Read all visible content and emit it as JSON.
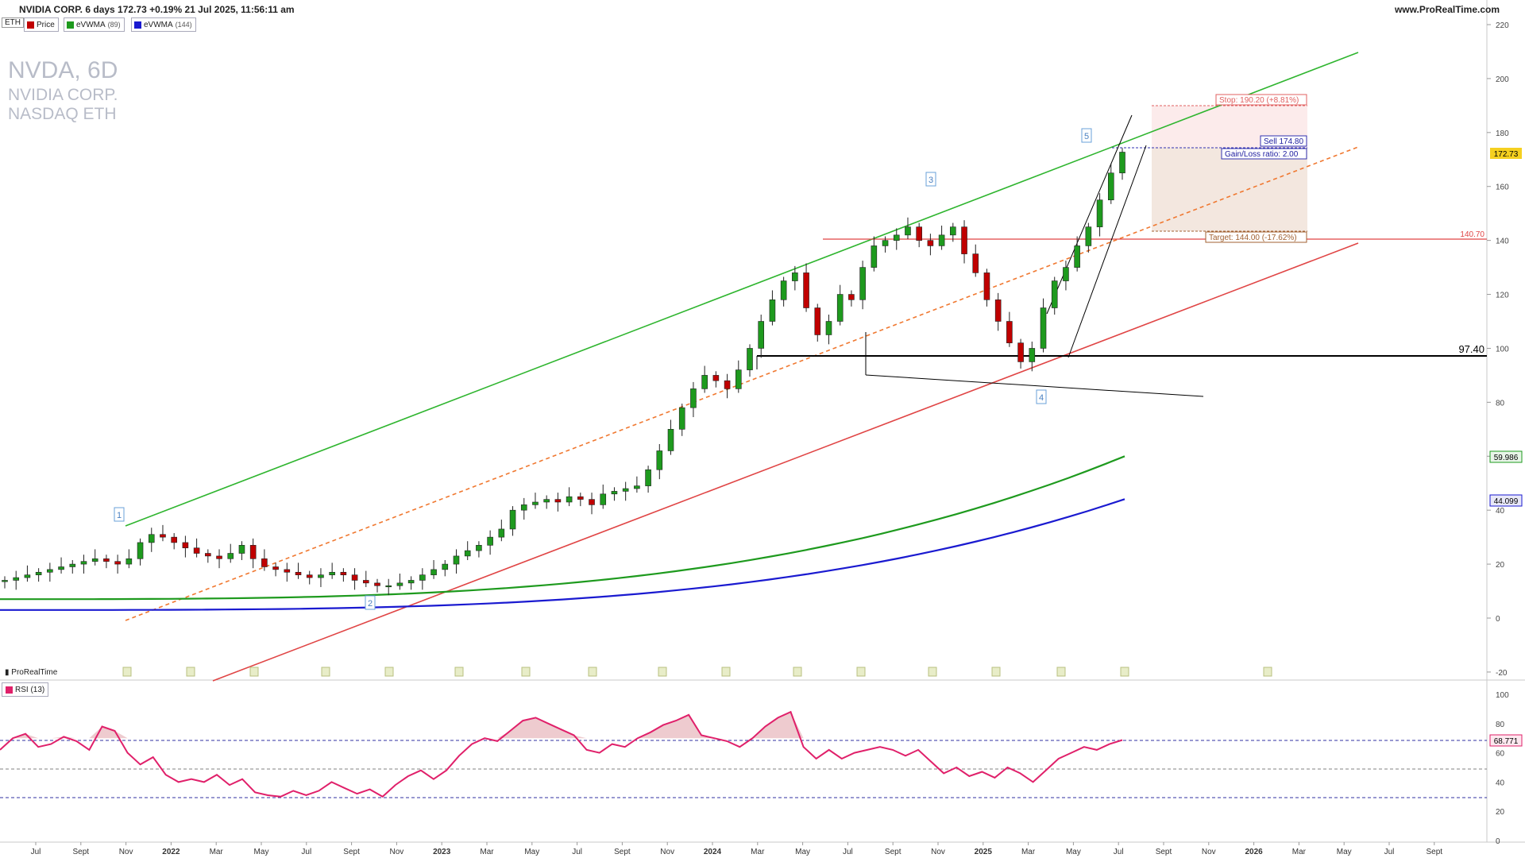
{
  "header": {
    "title": "NVIDIA CORP. 6 days 172.73 +0.19% 21 Jul 2025, 11:56:11 am",
    "site": "www.ProRealTime.com",
    "badge": "ETH"
  },
  "legend": [
    {
      "label": "Price",
      "sub": "",
      "color": "#c00000"
    },
    {
      "label": "eVWMA",
      "sub": "(89)",
      "color": "#1e9a1e"
    },
    {
      "label": "eVWMA",
      "sub": "(144)",
      "color": "#1a1ad0"
    }
  ],
  "watermark": {
    "ticker": "NVDA, 6D",
    "name": "NVIDIA CORP.",
    "exchange": "NASDAQ ETH"
  },
  "footer_brand": "ProRealTime",
  "colors": {
    "up": "#1e9a1e",
    "down": "#c00000",
    "green_line": "#2fb52f",
    "red_line": "#e04545",
    "orange": "#f07830",
    "blue_ma": "#1a1ad0",
    "rsi": "#e0206a"
  },
  "chart_data": [
    {
      "type": "candlestick",
      "x_ticks": [
        "Jul",
        "Sept",
        "Nov",
        "2022",
        "Mar",
        "May",
        "Jul",
        "Sept",
        "Nov",
        "2023",
        "Mar",
        "May",
        "Jul",
        "Sept",
        "Nov",
        "2024",
        "Mar",
        "May",
        "Jul",
        "Sept",
        "Nov",
        "2025",
        "Mar",
        "May",
        "Jul",
        "Sept",
        "Nov",
        "2026",
        "Mar",
        "May",
        "Jul",
        "Sept"
      ],
      "ylim": [
        -20,
        220
      ],
      "y_ticks": [
        -20,
        0,
        20,
        40,
        60,
        80,
        100,
        120,
        140,
        160,
        180,
        200,
        220
      ],
      "last_price": 172.73,
      "ma_labels": {
        "evwma89": 59.986,
        "evwma144": 44.099
      },
      "levels": {
        "support": 97.4,
        "resistance": 140.7
      },
      "trade": {
        "stop": "Stop: 190.20 (+8.81%)",
        "sell": "Sell 174.80",
        "ratio": "Gain/Loss ratio: 2.00",
        "target": "Target: 144.00 (-17.62%)"
      },
      "level_labels": {
        "support": "97.40",
        "resistance": "140.70"
      },
      "wave_labels": [
        "1",
        "2",
        "3",
        "4",
        "5"
      ],
      "candles_close_approx": [
        14,
        15,
        16,
        17,
        18,
        19,
        20,
        21,
        22,
        21,
        20,
        22,
        28,
        31,
        30,
        28,
        26,
        24,
        23,
        22,
        24,
        27,
        22,
        19,
        18,
        17,
        16,
        15,
        16,
        17,
        16,
        14,
        13,
        12,
        12,
        13,
        14,
        16,
        18,
        20,
        23,
        25,
        27,
        30,
        33,
        40,
        42,
        43,
        44,
        43,
        45,
        44,
        42,
        46,
        47,
        48,
        49,
        55,
        62,
        70,
        78,
        85,
        90,
        88,
        85,
        92,
        100,
        110,
        118,
        125,
        128,
        115,
        105,
        110,
        120,
        118,
        130,
        138,
        140,
        142,
        145,
        140,
        138,
        142,
        145,
        135,
        128,
        118,
        110,
        102,
        95,
        100,
        115,
        125,
        130,
        138,
        145,
        155,
        165,
        172.73
      ]
    },
    {
      "type": "line",
      "name": "RSI",
      "legend": "RSI (13)",
      "ylim": [
        0,
        100
      ],
      "y_ticks": [
        0,
        20,
        40,
        60,
        80,
        100
      ],
      "last_value": 68.771,
      "values": [
        62,
        70,
        73,
        64,
        66,
        71,
        68,
        62,
        78,
        75,
        60,
        52,
        57,
        45,
        40,
        42,
        40,
        45,
        38,
        42,
        33,
        31,
        30,
        34,
        31,
        34,
        40,
        36,
        32,
        35,
        30,
        38,
        44,
        48,
        42,
        48,
        58,
        66,
        70,
        68,
        75,
        82,
        84,
        80,
        76,
        72,
        62,
        60,
        66,
        64,
        70,
        74,
        79,
        82,
        86,
        72,
        70,
        68,
        64,
        70,
        78,
        84,
        88,
        64,
        56,
        62,
        56,
        60,
        62,
        64,
        62,
        58,
        62,
        54,
        46,
        50,
        44,
        47,
        43,
        50,
        46,
        40,
        48,
        56,
        60,
        64,
        62,
        66,
        68.771
      ]
    }
  ]
}
